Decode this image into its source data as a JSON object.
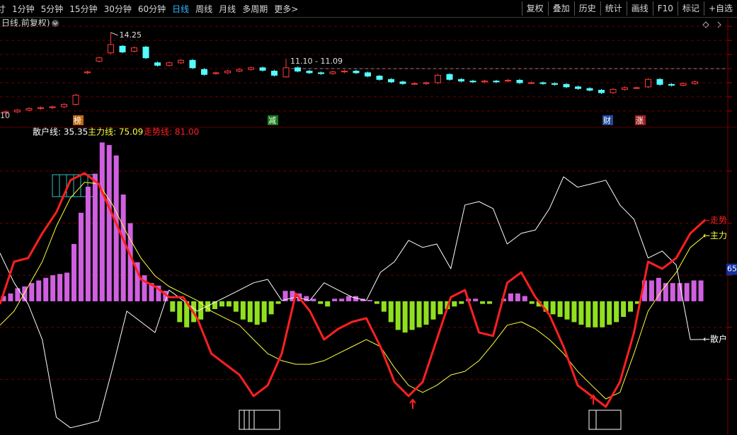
{
  "toolbar": {
    "periods": [
      "寸",
      "1分钟",
      "5分钟",
      "15分钟",
      "30分钟",
      "60分钟",
      "日线",
      "周线",
      "月线",
      "多周期",
      "更多>"
    ],
    "tools": [
      "复权",
      "叠加",
      "历史",
      "统计",
      "画线",
      "F10",
      "标记",
      "+自选"
    ]
  },
  "price_panel": {
    "type": "candlestick",
    "title": "日线,前复权)",
    "ylim": [
      3.0,
      15.78
    ],
    "yticks": [
      4.8,
      6.5,
      8.2,
      9.9,
      11.6,
      13.3,
      15
    ],
    "up_color": "#ff3c3c",
    "down_color": "#54ffff",
    "candles": [
      [
        4.6,
        4.85,
        4.45,
        4.7
      ],
      [
        4.7,
        5.05,
        4.55,
        4.9
      ],
      [
        4.9,
        5.25,
        4.75,
        5.1
      ],
      [
        5.1,
        5.35,
        4.95,
        5.2
      ],
      [
        5.2,
        5.45,
        5.05,
        5.3
      ],
      [
        5.3,
        5.75,
        5.15,
        5.6
      ],
      [
        5.6,
        6.85,
        5.45,
        6.7
      ],
      [
        9.4,
        9.65,
        9.25,
        9.5
      ],
      [
        10.8,
        11.35,
        10.65,
        11.2
      ],
      [
        11.8,
        14.25,
        11.6,
        12.8
      ],
      [
        12.6,
        12.75,
        11.75,
        11.9
      ],
      [
        12.0,
        12.55,
        11.85,
        12.4
      ],
      [
        12.5,
        12.65,
        11.05,
        11.2
      ],
      [
        10.6,
        10.75,
        10.15,
        10.3
      ],
      [
        10.3,
        10.75,
        10.15,
        10.6
      ],
      [
        10.6,
        11.05,
        10.45,
        10.9
      ],
      [
        10.9,
        11.05,
        9.85,
        10.0
      ],
      [
        9.8,
        9.95,
        9.05,
        9.2
      ],
      [
        9.3,
        9.55,
        9.15,
        9.4
      ],
      [
        9.4,
        9.75,
        9.25,
        9.6
      ],
      [
        9.6,
        9.95,
        9.45,
        9.8
      ],
      [
        9.8,
        10.15,
        9.65,
        10.0
      ],
      [
        10.0,
        10.15,
        9.55,
        9.7
      ],
      [
        9.6,
        9.75,
        8.95,
        9.1
      ],
      [
        8.9,
        11.1,
        8.8,
        10.0
      ],
      [
        10.0,
        10.15,
        9.45,
        9.6
      ],
      [
        9.6,
        9.75,
        9.25,
        9.4
      ],
      [
        9.4,
        9.55,
        9.15,
        9.3
      ],
      [
        9.3,
        9.65,
        9.15,
        9.5
      ],
      [
        9.5,
        9.75,
        9.35,
        9.6
      ],
      [
        9.6,
        9.75,
        9.25,
        9.4
      ],
      [
        9.4,
        9.55,
        8.85,
        9.0
      ],
      [
        9.0,
        9.15,
        8.45,
        8.6
      ],
      [
        8.6,
        8.75,
        8.15,
        8.3
      ],
      [
        8.3,
        8.45,
        7.95,
        8.1
      ],
      [
        8.1,
        8.25,
        7.95,
        8.1
      ],
      [
        8.1,
        8.35,
        7.95,
        8.2
      ],
      [
        8.2,
        9.25,
        8.05,
        9.1
      ],
      [
        9.2,
        9.35,
        8.45,
        8.6
      ],
      [
        8.6,
        8.75,
        8.25,
        8.4
      ],
      [
        8.4,
        8.55,
        8.15,
        8.3
      ],
      [
        8.3,
        8.55,
        8.15,
        8.4
      ],
      [
        8.4,
        8.55,
        8.15,
        8.3
      ],
      [
        8.4,
        8.65,
        8.25,
        8.5
      ],
      [
        8.5,
        8.65,
        8.05,
        8.2
      ],
      [
        8.2,
        8.35,
        8.05,
        8.2
      ],
      [
        8.2,
        8.35,
        7.95,
        8.1
      ],
      [
        8.1,
        8.25,
        7.85,
        8.0
      ],
      [
        8.0,
        8.15,
        7.55,
        7.7
      ],
      [
        7.7,
        7.85,
        7.35,
        7.5
      ],
      [
        7.5,
        7.65,
        7.15,
        7.3
      ],
      [
        7.3,
        7.45,
        6.85,
        7.0
      ],
      [
        7.0,
        7.55,
        6.85,
        7.4
      ],
      [
        7.4,
        7.75,
        7.25,
        7.6
      ],
      [
        7.6,
        7.75,
        7.45,
        7.6
      ],
      [
        7.7,
        8.75,
        7.55,
        8.6
      ],
      [
        8.6,
        8.75,
        7.85,
        8.0
      ],
      [
        8.0,
        8.15,
        7.75,
        7.9
      ],
      [
        7.9,
        8.25,
        7.75,
        8.1
      ],
      [
        8.1,
        8.45,
        7.95,
        8.3
      ]
    ],
    "high_label": 14.25,
    "range_label": "11.10 - 11.09",
    "date_label": "10",
    "event_markers": [
      "榜",
      "减",
      "财",
      "涨"
    ]
  },
  "indicator_panel": {
    "type": "line",
    "ylim": [
      0,
      116
    ],
    "yticks": [
      20,
      40,
      60,
      80,
      100
    ],
    "series": [
      {
        "label": "散户线: 35.35",
        "end_label": "←散户",
        "color": "#ffffff",
        "width": 1,
        "values": [
          68.5,
          57.1,
          48.9,
          35.3,
          5.4,
          1.4,
          2.7,
          4.1,
          24.5,
          46.2,
          42.1,
          38.0,
          54.3,
          50.3,
          46.2,
          48.9,
          51.6,
          54.3,
          57.1,
          58.4,
          50.3,
          51.6,
          50.3,
          57.1,
          54.3,
          51.6,
          50.3,
          61.1,
          65.2,
          73.4,
          70.7,
          72.0,
          62.5,
          87.0,
          88.3,
          85.6,
          72.0,
          76.1,
          77.4,
          85.6,
          97.8,
          93.8,
          95.1,
          96.5,
          87.0,
          81.5,
          66.6,
          69.3,
          63.9,
          35.3,
          35.35
        ]
      },
      {
        "label": "主力线: 75.09",
        "end_label": "←主力",
        "color": "#ffff40",
        "width": 1,
        "values": [
          40.8,
          46.2,
          55.7,
          65.2,
          78.8,
          89.7,
          95.7,
          95.1,
          87.0,
          76.1,
          66.6,
          59.8,
          55.7,
          53.0,
          50.3,
          46.2,
          43.5,
          40.8,
          35.3,
          29.9,
          27.2,
          25.8,
          25.8,
          27.2,
          29.9,
          32.6,
          35.3,
          32.6,
          24.5,
          17.7,
          15.0,
          17.7,
          21.7,
          23.1,
          27.2,
          33.7,
          40.8,
          42.1,
          39.4,
          35.3,
          29.9,
          23.1,
          17.7,
          12.5,
          15.0,
          29.9,
          46.2,
          54.3,
          61.1,
          70.7,
          75.09
        ]
      },
      {
        "label": "走势线: 81.00",
        "end_label": "←走势",
        "color": "#ff2020",
        "width": 3,
        "values": [
          48.9,
          65.2,
          66.6,
          76.1,
          84.2,
          96.5,
          99.2,
          95.1,
          82.9,
          70.7,
          58.4,
          55.7,
          51.6,
          51.6,
          43.5,
          29.9,
          25.8,
          21.7,
          13.6,
          17.7,
          29.9,
          53.0,
          46.2,
          35.3,
          39.4,
          42.1,
          43.5,
          32.6,
          19.0,
          13.6,
          19.0,
          35.3,
          51.6,
          54.3,
          38.0,
          36.7,
          57.1,
          61.1,
          51.6,
          44.8,
          32.6,
          17.7,
          13.6,
          9.5,
          19.0,
          38.0,
          65.2,
          62.5,
          66.6,
          76.1,
          81.0
        ]
      }
    ],
    "histogram": {
      "base": 50,
      "up_color": "#d060e0",
      "down_color": "#90e020",
      "values": [
        52,
        53,
        55,
        55.7,
        57,
        58,
        59,
        60,
        60.5,
        61,
        72,
        84,
        94,
        99,
        111,
        110,
        106,
        91,
        80,
        65,
        60,
        57,
        56,
        54,
        46,
        42,
        40,
        42,
        43,
        46,
        47,
        48,
        48,
        46,
        43,
        42,
        41,
        42,
        45,
        49,
        54,
        54,
        53,
        52,
        51,
        49,
        48,
        51,
        51,
        52,
        52,
        51,
        50.5,
        49,
        46,
        42,
        39,
        38,
        39,
        40,
        41,
        43,
        45,
        47,
        48,
        49,
        51,
        51,
        49,
        49,
        50,
        51,
        53,
        53,
        52,
        49,
        48,
        46,
        45,
        44,
        43,
        42,
        41,
        40,
        40,
        40,
        41,
        42,
        44,
        46,
        49,
        58,
        58,
        59,
        57,
        57,
        57,
        57,
        58,
        58
      ]
    },
    "right_marker": 65
  }
}
